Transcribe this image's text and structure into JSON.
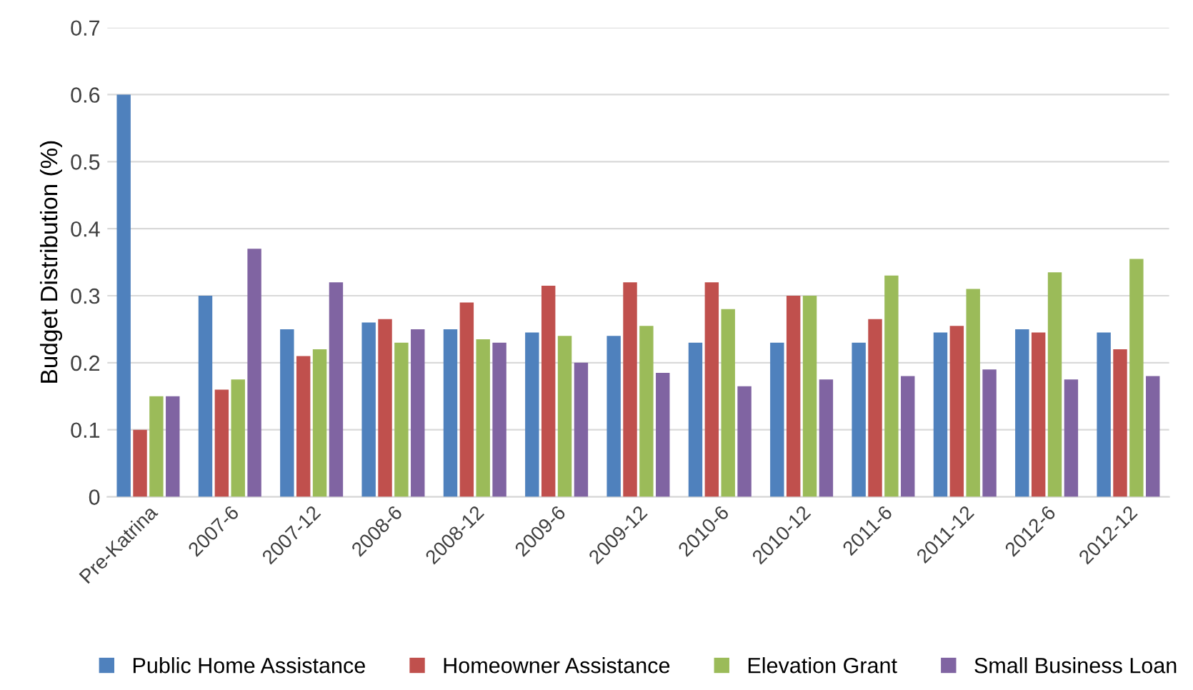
{
  "chart_data": {
    "type": "bar",
    "ylabel": "Budget Distribution (%)",
    "categories": [
      "Pre-Katrina",
      "2007-6",
      "2007-12",
      "2008-6",
      "2008-12",
      "2009-6",
      "2009-12",
      "2010-6",
      "2010-12",
      "2011-6",
      "2011-12",
      "2012-6",
      "2012-12"
    ],
    "series": [
      {
        "name": "Public Home Assistance",
        "color": "#4f81bd",
        "values": [
          0.6,
          0.3,
          0.25,
          0.26,
          0.25,
          0.245,
          0.24,
          0.23,
          0.23,
          0.23,
          0.245,
          0.25,
          0.245
        ]
      },
      {
        "name": "Homeowner Assistance",
        "color": "#c0504d",
        "values": [
          0.1,
          0.16,
          0.21,
          0.265,
          0.29,
          0.315,
          0.32,
          0.32,
          0.3,
          0.265,
          0.255,
          0.245,
          0.22
        ]
      },
      {
        "name": "Elevation Grant",
        "color": "#9bbb59",
        "values": [
          0.15,
          0.175,
          0.22,
          0.23,
          0.235,
          0.24,
          0.255,
          0.28,
          0.3,
          0.33,
          0.31,
          0.335,
          0.355
        ]
      },
      {
        "name": "Small Business Loan",
        "color": "#8064a2",
        "values": [
          0.15,
          0.37,
          0.32,
          0.25,
          0.23,
          0.2,
          0.185,
          0.165,
          0.175,
          0.18,
          0.19,
          0.175,
          0.18
        ]
      }
    ],
    "ylim": [
      0,
      0.7
    ],
    "yticks": [
      {
        "value": 0,
        "label": "0"
      },
      0.1,
      0.2,
      0.3,
      0.4,
      0.5,
      0.6,
      0.7
    ],
    "grid": "y",
    "legend": "bottom"
  }
}
